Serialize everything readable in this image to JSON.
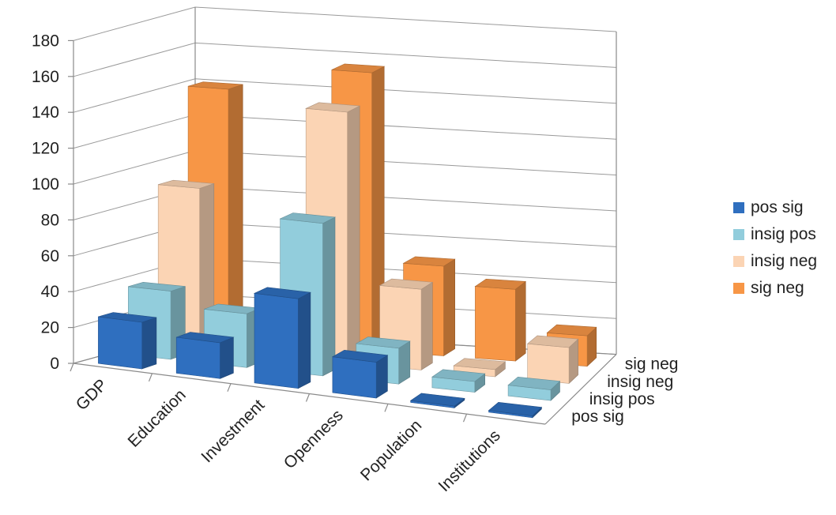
{
  "chart_data": {
    "type": "bar",
    "subtype": "3d-column",
    "categories": [
      "GDP",
      "Education",
      "Investment",
      "Openness",
      "Population",
      "Institutions"
    ],
    "series": [
      {
        "name": "pos sig",
        "values": [
          26,
          20,
          50,
          20,
          1,
          1
        ],
        "color": "#2f6fbf"
      },
      {
        "name": "insig pos",
        "values": [
          38,
          30,
          85,
          20,
          6,
          6
        ],
        "color": "#92cddc"
      },
      {
        "name": "insig neg",
        "values": [
          90,
          21,
          140,
          45,
          4,
          20
        ],
        "color": "#fbd4b4"
      },
      {
        "name": "sig neg",
        "values": [
          140,
          23,
          155,
          50,
          40,
          17
        ],
        "color": "#f79646"
      }
    ],
    "ylim": [
      0,
      180
    ],
    "yticks": [
      0,
      20,
      40,
      60,
      80,
      100,
      120,
      140,
      160,
      180
    ],
    "depth_labels": [
      "pos sig",
      "insig pos",
      "insig neg",
      "sig neg"
    ],
    "legend_position": "right",
    "grid": true,
    "title": "",
    "xlabel": "",
    "ylabel": ""
  }
}
